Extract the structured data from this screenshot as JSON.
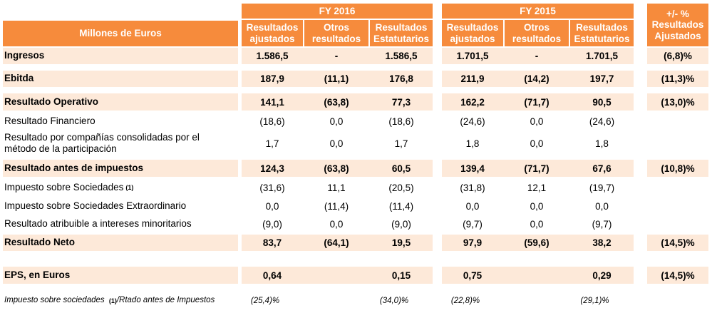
{
  "header": {
    "millones": "Millones de Euros",
    "fy2016": "FY 2016",
    "fy2015": "FY 2015",
    "var_top": "+/- %",
    "var_bottom": "Resultados Ajustados",
    "columns": [
      [
        "Resultados",
        "ajustados"
      ],
      [
        "Otros",
        "resultados"
      ],
      [
        "Resultados",
        "Estatutarios"
      ]
    ]
  },
  "rows": [
    {
      "label": "Ingresos",
      "bold": true,
      "values": [
        "1.586,5",
        "-",
        "1.586,5",
        "1.701,5",
        "-",
        "1.701,5"
      ],
      "var": "(6,8)%"
    },
    {
      "label": "Ebitda",
      "bold": true,
      "values": [
        "187,9",
        "(11,1)",
        "176,8",
        "211,9",
        "(14,2)",
        "197,7"
      ],
      "var": "(11,3)%"
    },
    {
      "label": "Resultado Operativo",
      "bold": true,
      "values": [
        "141,1",
        "(63,8)",
        "77,3",
        "162,2",
        "(71,7)",
        "90,5"
      ],
      "var": "(13,0)%"
    },
    {
      "label": "Resultado Financiero",
      "bold": false,
      "values": [
        "(18,6)",
        "0,0",
        "(18,6)",
        "(24,6)",
        "0,0",
        "(24,6)"
      ],
      "var": ""
    },
    {
      "label_lines": [
        "Resultado por compañías consolidadas por el",
        "método de la participación"
      ],
      "bold": false,
      "values": [
        "1,7",
        "0,0",
        "1,7",
        "1,8",
        "0,0",
        "1,8"
      ],
      "var": ""
    },
    {
      "label": "Resultado antes de impuestos",
      "bold": true,
      "values": [
        "124,3",
        "(63,8)",
        "60,5",
        "139,4",
        "(71,7)",
        "67,6"
      ],
      "var": "(10,8)%"
    },
    {
      "label": "Impuesto sobre Sociedades",
      "sup": "(1)",
      "bold": false,
      "values": [
        "(31,6)",
        "11,1",
        "(20,5)",
        "(31,8)",
        "12,1",
        "(19,7)"
      ],
      "var": ""
    },
    {
      "label": "Impuesto sobre Sociedades Extraordinario",
      "bold": false,
      "values": [
        "0,0",
        "(11,4)",
        "(11,4)",
        "0,0",
        "0,0",
        "0,0"
      ],
      "var": ""
    },
    {
      "label": "Resultado atribuible a intereses minoritarios",
      "bold": false,
      "values": [
        "(9,0)",
        "0,0",
        "(9,0)",
        "(9,7)",
        "0,0",
        "(9,7)"
      ],
      "var": ""
    },
    {
      "label": "Resultado Neto",
      "bold": true,
      "values": [
        "83,7",
        "(64,1)",
        "19,5",
        "97,9",
        "(59,6)",
        "38,2"
      ],
      "var": "(14,5)%"
    },
    {
      "label": "EPS, en Euros",
      "bold": true,
      "values": [
        "0,64",
        "",
        "0,15",
        "0,75",
        "",
        "0,29"
      ],
      "var": "(14,5)%"
    }
  ],
  "footnote": {
    "label_a": "Impuesto sobre sociedades",
    "sup": "(1)",
    "label_b": "/Rtado antes de Impuestos",
    "values": [
      "(25,4)%",
      "",
      "(34,0)%",
      "(22,8)%",
      "",
      "(29,1)%"
    ]
  }
}
